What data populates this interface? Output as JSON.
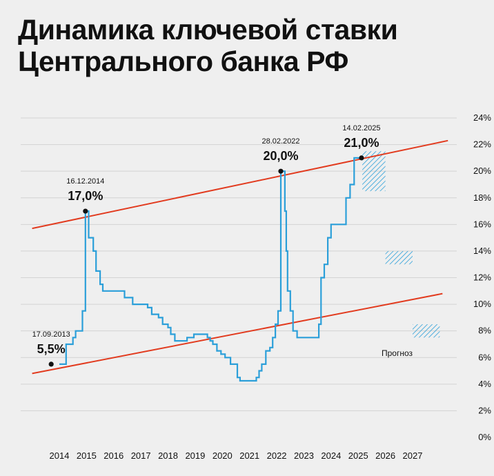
{
  "title_lines": [
    "Динамика ключевой ставки",
    "Центрального банка РФ"
  ],
  "chart_data": {
    "type": "line",
    "title": "Динамика ключевой ставки Центрального банка РФ",
    "x_unit": "year",
    "xlim": [
      2013.0,
      2028.6
    ],
    "ylim": [
      0,
      24
    ],
    "x_ticks": [
      2014,
      2015,
      2016,
      2017,
      2018,
      2019,
      2020,
      2021,
      2022,
      2023,
      2024,
      2025,
      2026,
      2027
    ],
    "y_ticks": [
      "0%",
      "2%",
      "4%",
      "6%",
      "8%",
      "10%",
      "12%",
      "14%",
      "16%",
      "18%",
      "20%",
      "22%",
      "24%"
    ],
    "grid": true,
    "series": [
      {
        "color": "#2b9fd9",
        "step": true,
        "points": [
          [
            2014.0,
            5.5
          ],
          [
            2014.2,
            5.5
          ],
          [
            2014.25,
            7.0
          ],
          [
            2014.5,
            7.5
          ],
          [
            2014.6,
            8.0
          ],
          [
            2014.85,
            9.5
          ],
          [
            2014.96,
            17.0
          ],
          [
            2015.08,
            15.0
          ],
          [
            2015.25,
            14.0
          ],
          [
            2015.35,
            12.5
          ],
          [
            2015.5,
            11.5
          ],
          [
            2015.6,
            11.0
          ],
          [
            2016.4,
            10.5
          ],
          [
            2016.7,
            10.0
          ],
          [
            2017.25,
            9.75
          ],
          [
            2017.4,
            9.25
          ],
          [
            2017.65,
            9.0
          ],
          [
            2017.8,
            8.5
          ],
          [
            2018.0,
            8.25
          ],
          [
            2018.1,
            7.75
          ],
          [
            2018.25,
            7.25
          ],
          [
            2018.7,
            7.5
          ],
          [
            2018.95,
            7.75
          ],
          [
            2019.45,
            7.5
          ],
          [
            2019.55,
            7.25
          ],
          [
            2019.65,
            7.0
          ],
          [
            2019.8,
            6.5
          ],
          [
            2019.95,
            6.25
          ],
          [
            2020.1,
            6.0
          ],
          [
            2020.3,
            5.5
          ],
          [
            2020.55,
            4.5
          ],
          [
            2020.65,
            4.25
          ],
          [
            2021.25,
            4.5
          ],
          [
            2021.35,
            5.0
          ],
          [
            2021.45,
            5.5
          ],
          [
            2021.6,
            6.5
          ],
          [
            2021.75,
            6.75
          ],
          [
            2021.85,
            7.5
          ],
          [
            2021.95,
            8.5
          ],
          [
            2022.05,
            9.5
          ],
          [
            2022.15,
            20.0
          ],
          [
            2022.3,
            17.0
          ],
          [
            2022.35,
            14.0
          ],
          [
            2022.4,
            11.0
          ],
          [
            2022.5,
            9.5
          ],
          [
            2022.6,
            8.0
          ],
          [
            2022.75,
            7.5
          ],
          [
            2023.55,
            8.5
          ],
          [
            2023.63,
            12.0
          ],
          [
            2023.75,
            13.0
          ],
          [
            2023.88,
            15.0
          ],
          [
            2024.0,
            16.0
          ],
          [
            2024.55,
            18.0
          ],
          [
            2024.7,
            19.0
          ],
          [
            2024.85,
            21.0
          ],
          [
            2025.1,
            21.0
          ]
        ]
      }
    ],
    "trend_lines": [
      {
        "color": "#e23b1f",
        "from": [
          2013.0,
          15.7
        ],
        "to": [
          2028.3,
          22.3
        ]
      },
      {
        "color": "#e23b1f",
        "from": [
          2013.0,
          4.8
        ],
        "to": [
          2028.1,
          10.8
        ]
      }
    ],
    "annotations": [
      {
        "date": "17.09.2013",
        "value": "5,5%",
        "x": 2013.7,
        "y": 5.5
      },
      {
        "date": "16.12.2014",
        "value": "17,0%",
        "x": 2014.96,
        "y": 17.0
      },
      {
        "date": "28.02.2022",
        "value": "20,0%",
        "x": 2022.15,
        "y": 20.0
      },
      {
        "date": "14.02.2025",
        "value": "21,0%",
        "x": 2025.12,
        "y": 21.0
      }
    ],
    "forecast_label": "Прогноз",
    "forecast_color": "#2b9fd9",
    "forecast_ranges": [
      {
        "x": [
          2025.15,
          2026.0
        ],
        "y": [
          18.5,
          21.5
        ]
      },
      {
        "x": [
          2026.0,
          2027.0
        ],
        "y": [
          13.0,
          14.0
        ]
      },
      {
        "x": [
          2027.0,
          2028.0
        ],
        "y": [
          7.5,
          8.5
        ]
      }
    ]
  }
}
